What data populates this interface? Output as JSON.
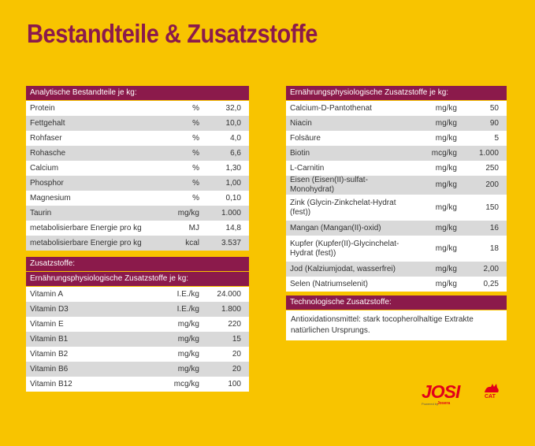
{
  "title": "Bestandteile & Zusatzstoffe",
  "analytic": {
    "header": "Analytische Bestandteile je kg:",
    "rows": [
      {
        "name": [
          "Protein"
        ],
        "unit": "%",
        "value": "32,0"
      },
      {
        "name": [
          "Fettgehalt"
        ],
        "unit": "%",
        "value": "10,0"
      },
      {
        "name": [
          "Rohfaser"
        ],
        "unit": "%",
        "value": "4,0"
      },
      {
        "name": [
          "Rohasche"
        ],
        "unit": "%",
        "value": "6,6"
      },
      {
        "name": [
          "Calcium"
        ],
        "unit": "%",
        "value": "1,30"
      },
      {
        "name": [
          "Phosphor"
        ],
        "unit": "%",
        "value": "1,00"
      },
      {
        "name": [
          "Magnesium"
        ],
        "unit": "%",
        "value": "0,10"
      },
      {
        "name": [
          "Taurin"
        ],
        "unit": "mg/kg",
        "value": "1.000"
      },
      {
        "name": [
          "metabolisierbare Energie pro kg"
        ],
        "unit": "MJ",
        "value": "14,8"
      },
      {
        "name": [
          "metabolisierbare Energie pro kg"
        ],
        "unit": "kcal",
        "value": "3.537"
      }
    ]
  },
  "additives": {
    "header": "Zusatzstoffe:",
    "subheader": "Ernährungsphysiologische Zusatzstoffe je kg:",
    "rows": [
      {
        "name": [
          "Vitamin A"
        ],
        "unit": "I.E./kg",
        "value": "24.000"
      },
      {
        "name": [
          "Vitamin D3"
        ],
        "unit": "I.E./kg",
        "value": "1.800"
      },
      {
        "name": [
          "Vitamin E"
        ],
        "unit": "mg/kg",
        "value": "220"
      },
      {
        "name": [
          "Vitamin B1"
        ],
        "unit": "mg/kg",
        "value": "15"
      },
      {
        "name": [
          "Vitamin B2"
        ],
        "unit": "mg/kg",
        "value": "20"
      },
      {
        "name": [
          "Vitamin B6"
        ],
        "unit": "mg/kg",
        "value": "20"
      },
      {
        "name": [
          "Vitamin B12"
        ],
        "unit": "mcg/kg",
        "value": "100"
      }
    ]
  },
  "nutritional": {
    "header": "Ernährungsphysiologische Zusatzstoffe je kg:",
    "rows": [
      {
        "name": [
          "Calcium-D-Pantothenat"
        ],
        "unit": "mg/kg",
        "value": "50"
      },
      {
        "name": [
          "Niacin"
        ],
        "unit": "mg/kg",
        "value": "90"
      },
      {
        "name": [
          "Folsäure"
        ],
        "unit": "mg/kg",
        "value": "5"
      },
      {
        "name": [
          "Biotin"
        ],
        "unit": "mcg/kg",
        "value": "1.000"
      },
      {
        "name": [
          "L-Carnitin"
        ],
        "unit": "mg/kg",
        "value": "250"
      },
      {
        "name": [
          "Eisen (Eisen(II)-sulfat-Monohydrat)"
        ],
        "unit": "mg/kg",
        "value": "200"
      },
      {
        "name": [
          "Zink (Glycin-Zinkchelat-Hydrat",
          "(fest))"
        ],
        "unit": "mg/kg",
        "value": "150"
      },
      {
        "name": [
          "Mangan (Mangan(II)-oxid)"
        ],
        "unit": "mg/kg",
        "value": "16"
      },
      {
        "name": [
          "Kupfer (Kupfer(II)-Glycinchelat-",
          "Hydrat (fest))"
        ],
        "unit": "mg/kg",
        "value": "18"
      },
      {
        "name": [
          "Jod (Kalziumjodat, wasserfrei)"
        ],
        "unit": "mg/kg",
        "value": "2,00"
      },
      {
        "name": [
          "Selen (Natriumselenit)"
        ],
        "unit": "mg/kg",
        "value": "0,25"
      }
    ]
  },
  "technological": {
    "header": "Technologische Zusatzstoffe:",
    "text": [
      "Antioxidationsmittel: stark tocopherolhaltige Extrakte",
      "natürlichen Ursprungs."
    ]
  },
  "logo": {
    "brand": "JOSI",
    "sub": "CAT",
    "powered": "Powered by",
    "maker": "Josera"
  }
}
